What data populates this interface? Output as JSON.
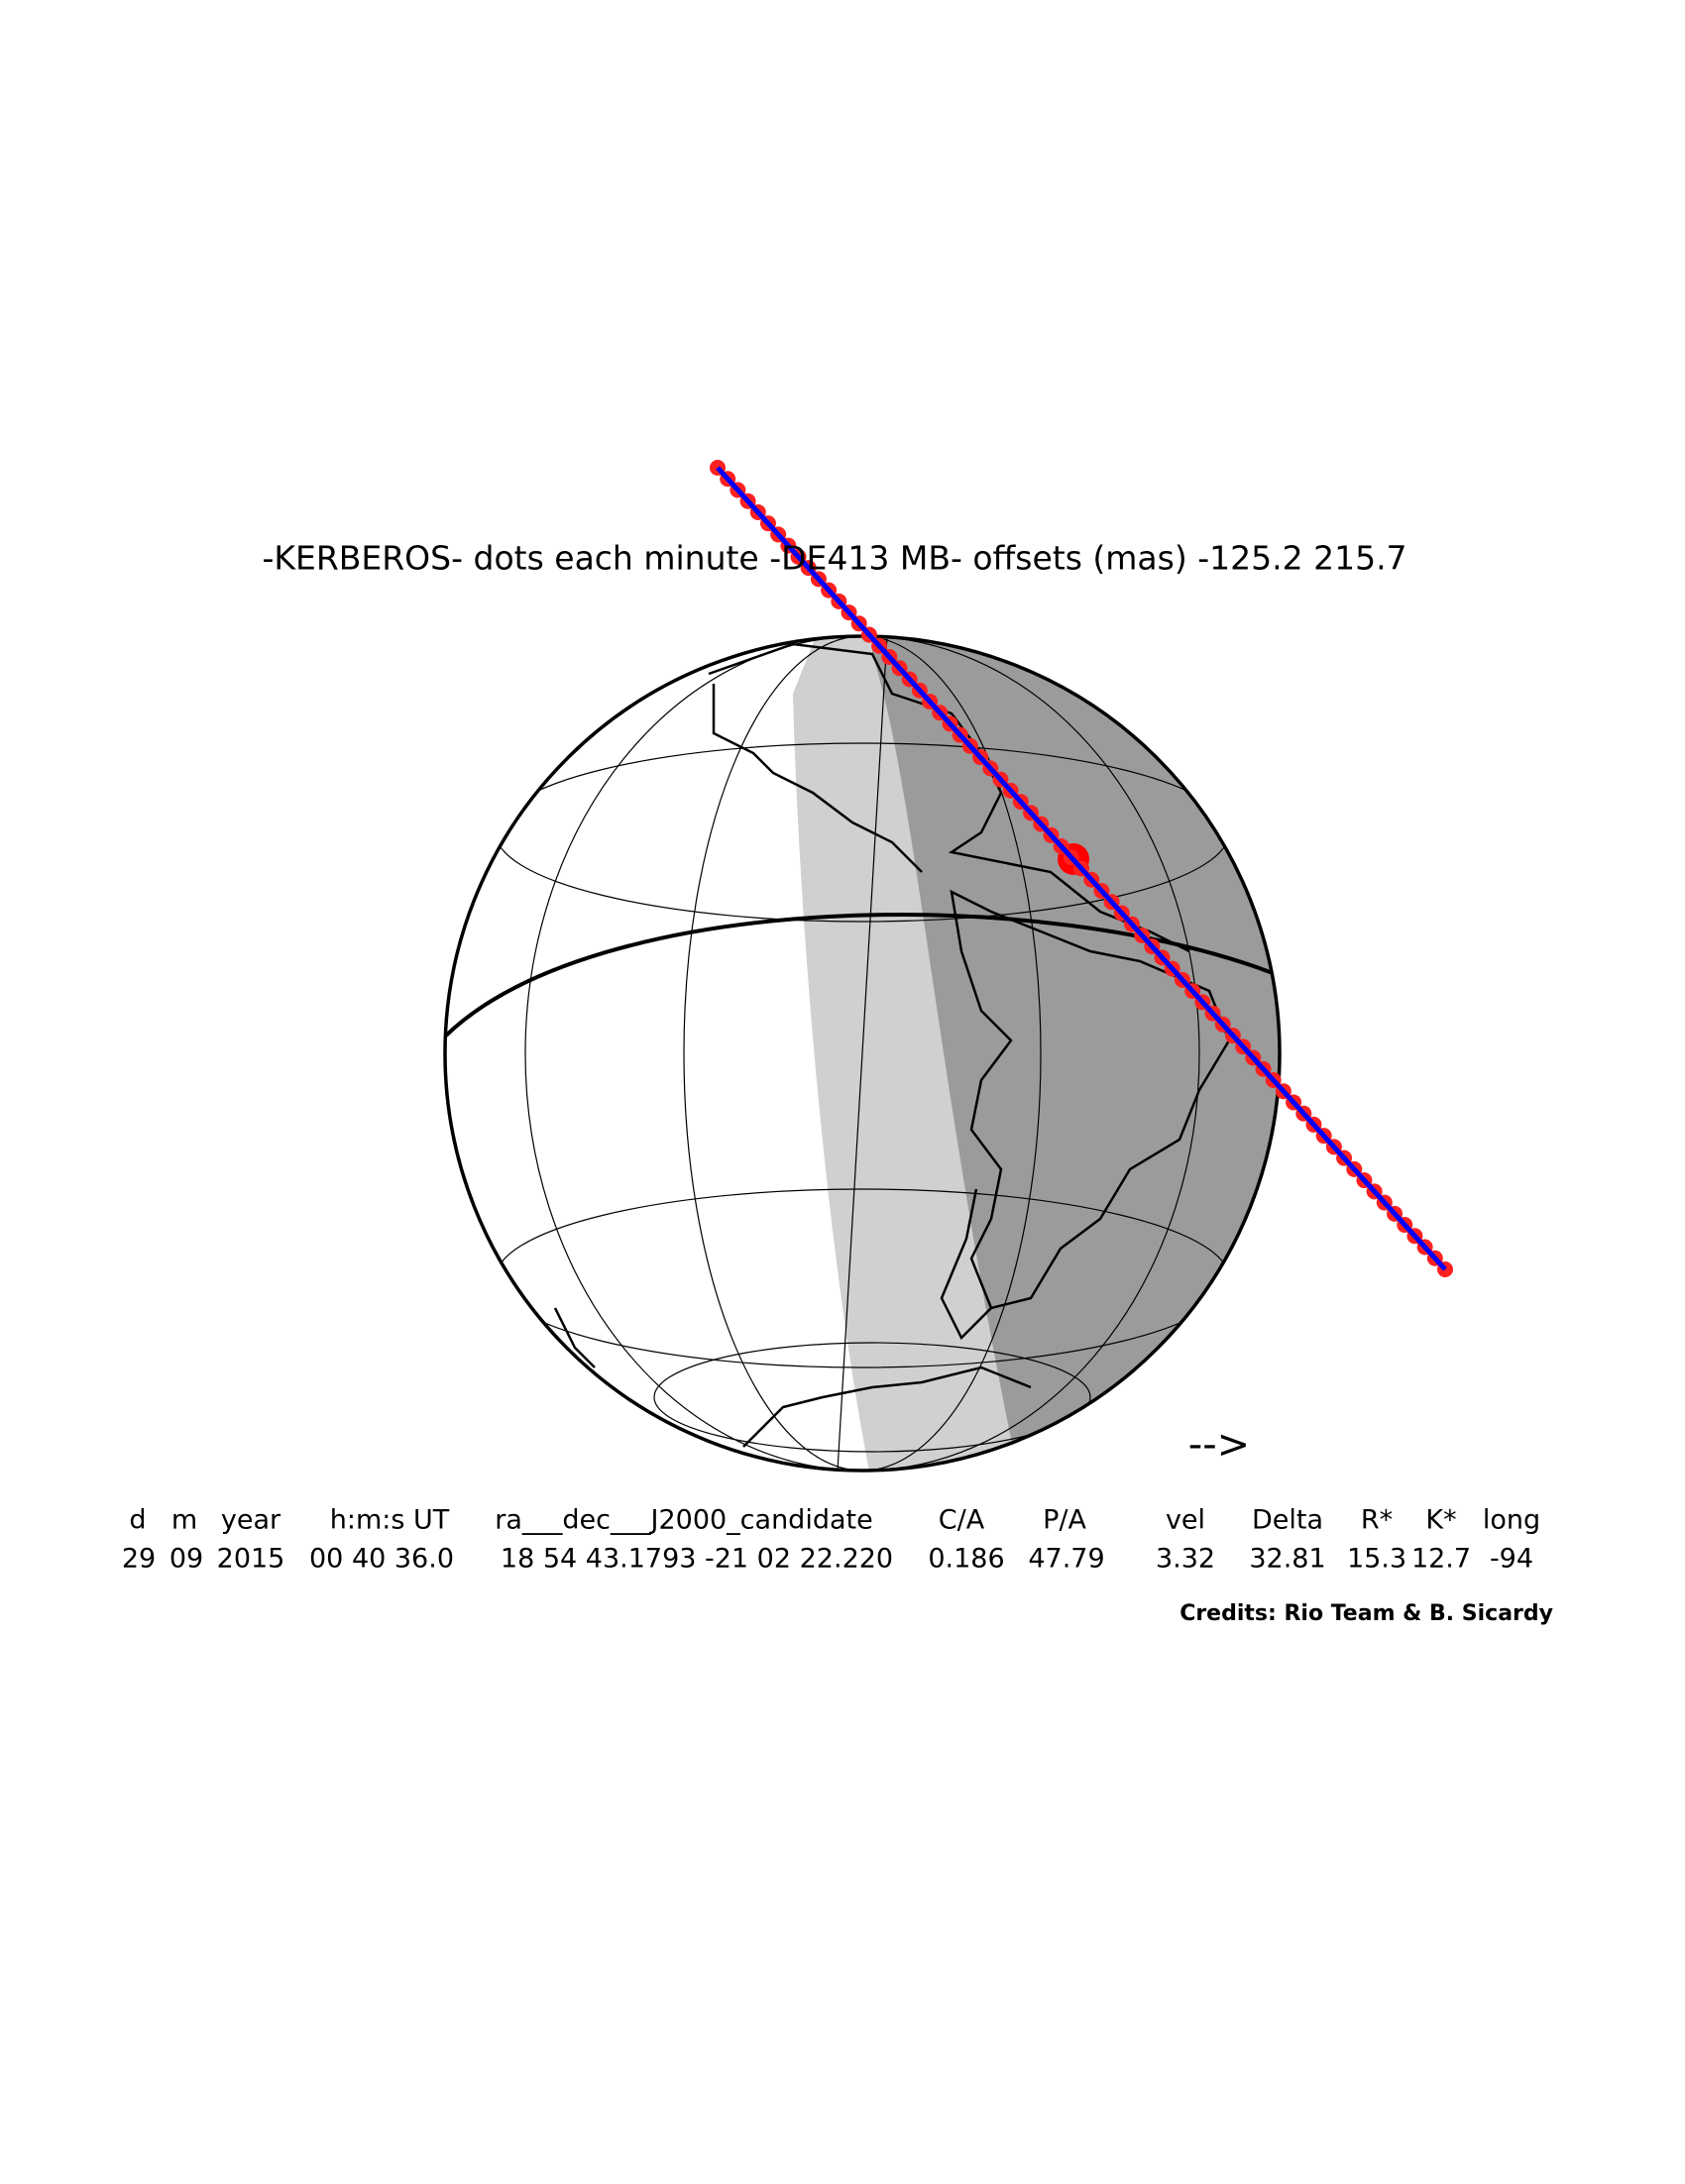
{
  "header": {
    "title": "-KERBEROS- dots each minute -DE413 MB- offsets (mas) -125.2 215.7"
  },
  "map": {
    "arrow": "-->"
  },
  "table": {
    "columns": [
      "d",
      "m",
      "year",
      "h:m:s UT",
      "ra___dec___J2000_candidate",
      "C/A",
      "P/A",
      "vel",
      "Delta",
      "R*",
      "K*",
      "long"
    ],
    "rows": [
      [
        "29",
        "09",
        "2015",
        "00 40 36.0",
        "18 54 43.1793 -21 02 22.220",
        "0.186",
        "47.79",
        "3.32",
        "32.81",
        "15.3",
        "12.7",
        "-94"
      ]
    ]
  },
  "footer": {
    "credits": "Credits: Rio Team & B. Sicardy"
  }
}
